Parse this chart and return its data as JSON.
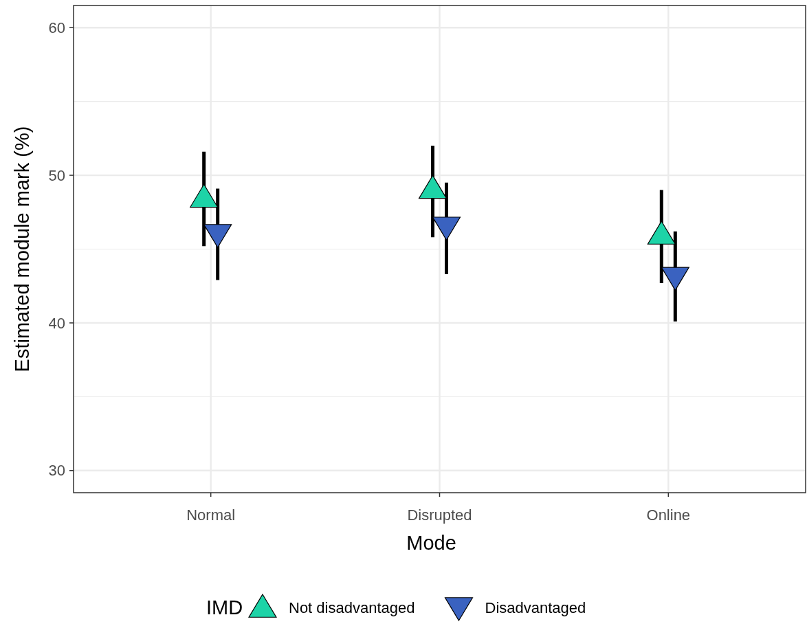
{
  "chart_data": {
    "type": "scatter",
    "xlabel": "Mode",
    "ylabel": "Estimated module mark (%)",
    "legend_title": "IMD",
    "categories": [
      "Normal",
      "Disrupted",
      "Online"
    ],
    "series": [
      {
        "name": "Not disadvantaged",
        "color": "#1dd3a7",
        "marker": "triangle",
        "values": [
          48.5,
          49.1,
          46.0
        ],
        "errors": [
          [
            45.2,
            51.6
          ],
          [
            45.8,
            52.0
          ],
          [
            42.7,
            49.0
          ]
        ]
      },
      {
        "name": "Disadvantaged",
        "color": "#3a62c0",
        "marker": "triangle-down",
        "values": [
          46.0,
          46.5,
          43.1
        ],
        "errors": [
          [
            42.9,
            49.1
          ],
          [
            43.3,
            49.5
          ],
          [
            40.1,
            46.2
          ]
        ]
      }
    ],
    "ylim": [
      28.5,
      61.5
    ],
    "yticks": [
      30,
      40,
      50,
      60
    ],
    "grid": true,
    "legend": "bottom"
  }
}
